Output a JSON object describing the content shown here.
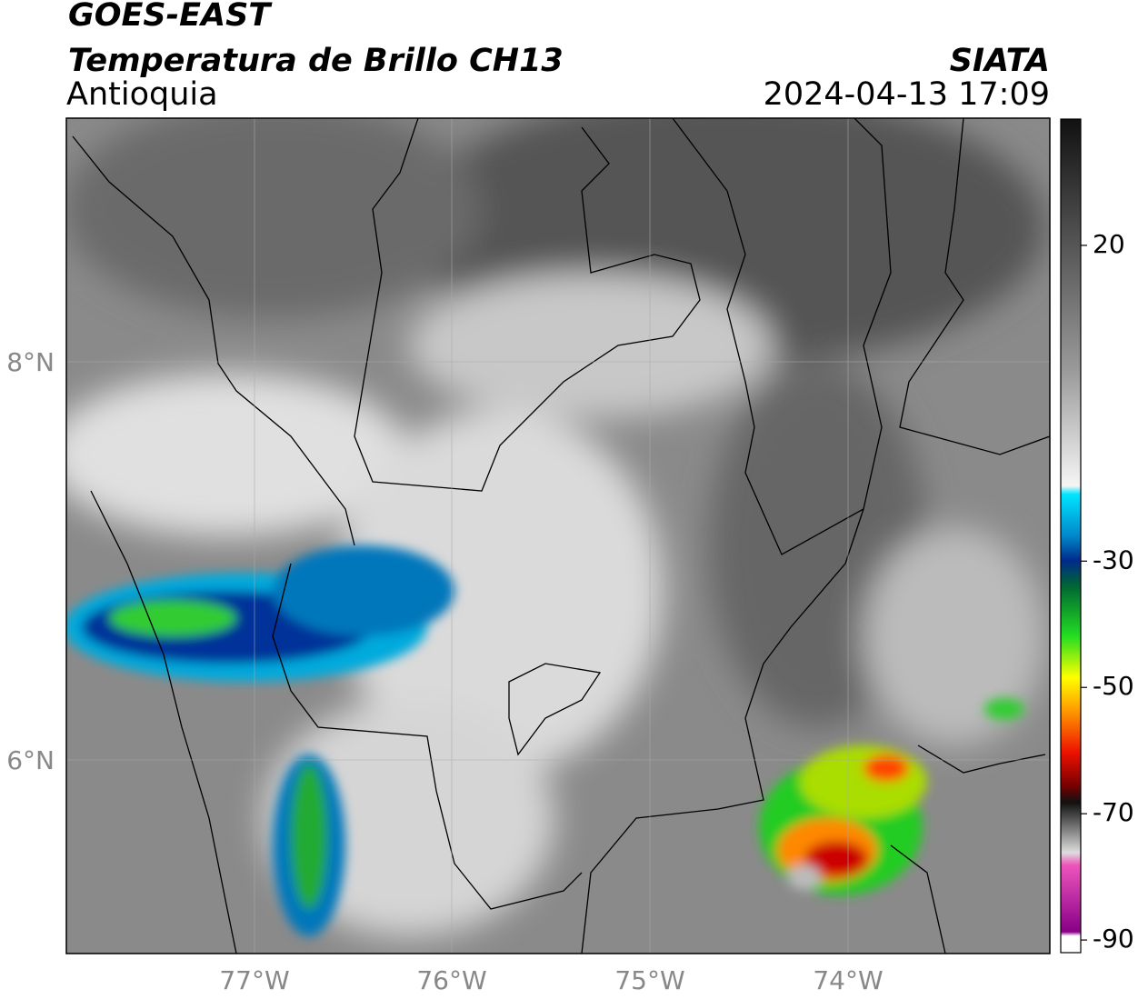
{
  "header": {
    "satellite": "GOES-EAST",
    "product": "Temperatura de Brillo CH13",
    "region": "Antioquia",
    "source": "SIATA",
    "datetime": "2024-04-13 17:09"
  },
  "map": {
    "lat_labels": [
      "8°N",
      "6°N"
    ],
    "lon_labels": [
      "77°W",
      "76°W",
      "75°W",
      "74°W"
    ]
  },
  "colorbar": {
    "lim": [
      -92,
      40
    ],
    "ticks": [
      20,
      -30,
      -50,
      -70,
      -90
    ]
  }
}
